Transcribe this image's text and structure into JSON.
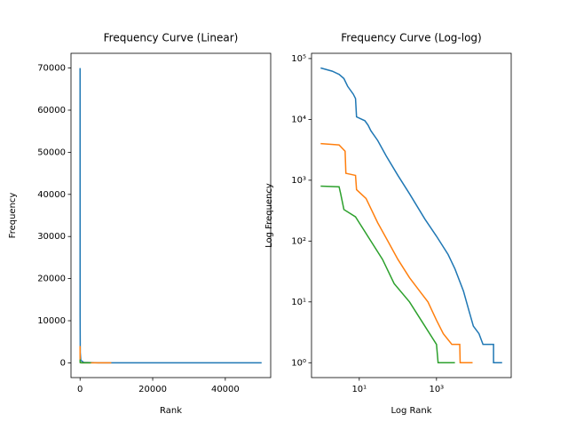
{
  "chart_data": [
    {
      "type": "line",
      "title": "Frequency Curve (Linear)",
      "xlabel": "Rank",
      "ylabel": "Frequency",
      "xlim": [
        -2500,
        52500
      ],
      "ylim": [
        -3500,
        73500
      ],
      "xticks": [
        0,
        20000,
        40000
      ],
      "yticks": [
        0,
        10000,
        20000,
        30000,
        40000,
        50000,
        60000,
        70000
      ],
      "series": [
        {
          "color": "#1f77b4",
          "x": [
            1,
            2,
            3,
            5,
            10,
            50,
            200,
            1000,
            5000,
            50000
          ],
          "values": [
            70000,
            62000,
            55000,
            35000,
            11000,
            2500,
            600,
            120,
            15,
            1
          ]
        },
        {
          "color": "#ff7f0e",
          "x": [
            1,
            3,
            10,
            55,
            600,
            2500,
            8600
          ],
          "values": [
            4000,
            3800,
            700,
            100,
            10,
            2,
            1
          ]
        },
        {
          "color": "#2ca02c",
          "x": [
            1,
            3,
            10,
            40,
            200,
            1000,
            3000
          ],
          "values": [
            800,
            780,
            200,
            50,
            10,
            2,
            1
          ]
        }
      ]
    },
    {
      "type": "line",
      "title": "Frequency Curve (Log-log)",
      "xlabel": "Log Rank",
      "ylabel": "Log Frequency",
      "xscale": "log",
      "yscale": "log",
      "xlim": [
        0.58,
        86000
      ],
      "ylim": [
        0.57,
        122000
      ],
      "xticks": [
        {
          "value": 10,
          "label": "10¹"
        },
        {
          "value": 1000,
          "label": "10³"
        }
      ],
      "yticks": [
        {
          "value": 1,
          "label": "10⁰"
        },
        {
          "value": 10,
          "label": "10¹"
        },
        {
          "value": 100,
          "label": "10²"
        },
        {
          "value": 1000,
          "label": "10³"
        },
        {
          "value": 10000,
          "label": "10⁴"
        },
        {
          "value": 100000,
          "label": "10⁵"
        }
      ],
      "series": [
        {
          "color": "#1f77b4",
          "x": [
            1,
            2,
            3,
            4,
            5,
            7,
            8,
            8.5,
            14,
            17,
            20,
            30,
            50,
            100,
            200,
            500,
            1000,
            2000,
            3000,
            5000,
            7000,
            9000,
            12600,
            16000,
            30000,
            30001,
            50000
          ],
          "values": [
            70000,
            62000,
            55000,
            47000,
            35000,
            26000,
            22000,
            11000,
            9500,
            8000,
            6500,
            4500,
            2500,
            1200,
            600,
            230,
            120,
            60,
            35,
            15,
            7,
            4,
            3,
            2,
            2,
            1,
            1
          ]
        },
        {
          "color": "#ff7f0e",
          "x": [
            1,
            3,
            4.3,
            4.5,
            8,
            8.5,
            15,
            30,
            55,
            100,
            200,
            400,
            600,
            1000,
            1500,
            2500,
            2600,
            4000,
            4100,
            8600
          ],
          "values": [
            4000,
            3800,
            3000,
            1300,
            1200,
            700,
            500,
            200,
            100,
            50,
            25,
            14,
            10,
            5,
            3,
            2,
            2,
            2,
            1,
            1
          ]
        },
        {
          "color": "#2ca02c",
          "x": [
            1,
            3,
            3.3,
            4,
            8,
            10,
            20,
            40,
            80,
            200,
            400,
            1000,
            1100,
            3000
          ],
          "values": [
            800,
            780,
            600,
            330,
            250,
            200,
            100,
            50,
            20,
            10,
            5,
            2,
            1,
            1
          ]
        }
      ]
    }
  ]
}
